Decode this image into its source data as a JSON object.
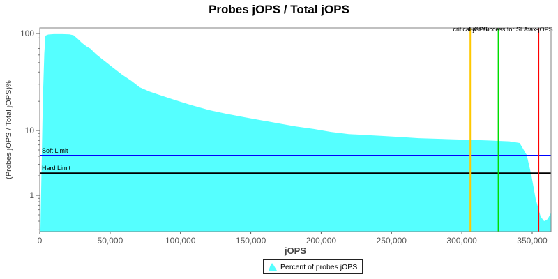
{
  "title": "Probes jOPS / Total jOPS",
  "axes": {
    "x_label": "jOPS",
    "y_label": "(Probes jOPS / Total jOPS)%"
  },
  "legend": {
    "label": "Percent of probes jOPS",
    "swatch_color": "#55FFFF"
  },
  "colors": {
    "area": "#55FFFF",
    "soft_limit": "#0000FF",
    "hard_limit": "#000000",
    "critical_jops": "#FFC800",
    "last_success_sla": "#00DD00",
    "max_jops": "#FF0000",
    "plot_border": "#808080"
  },
  "chart_data": {
    "type": "area",
    "title": "Probes jOPS / Total jOPS",
    "xlabel": "jOPS",
    "ylabel": "(Probes jOPS / Total jOPS)%",
    "x_scale": "linear",
    "y_scale": "log",
    "xlim": [
      0,
      363400
    ],
    "ylim": [
      0.28,
      115
    ],
    "grid": false,
    "legend_position": "bottom",
    "x_ticks": [
      {
        "value": 0,
        "label": "0"
      },
      {
        "value": 50000,
        "label": "50,000"
      },
      {
        "value": 100000,
        "label": "100,000"
      },
      {
        "value": 150000,
        "label": "150,000"
      },
      {
        "value": 200000,
        "label": "200,000"
      },
      {
        "value": 250000,
        "label": "250,000"
      },
      {
        "value": 300000,
        "label": "300,000"
      },
      {
        "value": 350000,
        "label": "350,000"
      }
    ],
    "y_ticks": [
      {
        "value": 100,
        "label": "100"
      },
      {
        "value": 10,
        "label": "10"
      },
      {
        "value": 1,
        "label": "1"
      }
    ],
    "series": [
      {
        "name": "Percent of probes jOPS",
        "color": "#55FFFF",
        "points": [
          [
            500,
            0.3
          ],
          [
            1200,
            2
          ],
          [
            2200,
            20
          ],
          [
            3200,
            62
          ],
          [
            4000,
            95
          ],
          [
            6000,
            97.5
          ],
          [
            10000,
            98.5
          ],
          [
            16000,
            98.5
          ],
          [
            21000,
            98
          ],
          [
            24000,
            96
          ],
          [
            27000,
            88
          ],
          [
            30000,
            80
          ],
          [
            33000,
            74
          ],
          [
            36200,
            69.5
          ],
          [
            40000,
            61
          ],
          [
            46100,
            52
          ],
          [
            52000,
            44.5
          ],
          [
            58500,
            37.6
          ],
          [
            65000,
            32.5
          ],
          [
            71000,
            27.9
          ],
          [
            78000,
            25.2
          ],
          [
            83300,
            23.7
          ],
          [
            95700,
            20.7
          ],
          [
            108000,
            18.2
          ],
          [
            120500,
            16.2
          ],
          [
            132000,
            14.9
          ],
          [
            145300,
            13.7
          ],
          [
            158000,
            12.7
          ],
          [
            170100,
            11.8
          ],
          [
            182000,
            11
          ],
          [
            194800,
            10.35
          ],
          [
            207000,
            9.5
          ],
          [
            219600,
            8.8
          ],
          [
            232000,
            8.5
          ],
          [
            244400,
            8.2
          ],
          [
            257000,
            7.9
          ],
          [
            269200,
            7.6
          ],
          [
            281000,
            7.45
          ],
          [
            294000,
            7.3
          ],
          [
            306400,
            7.15
          ],
          [
            318800,
            7
          ],
          [
            326200,
            6.9
          ],
          [
            333700,
            6.8
          ],
          [
            341100,
            6.4
          ],
          [
            346100,
            4.2
          ],
          [
            349500,
            2
          ],
          [
            352500,
            0.88
          ],
          [
            356000,
            0.47
          ],
          [
            358500,
            0.4
          ],
          [
            361000,
            0.43
          ],
          [
            363400,
            0.54
          ]
        ]
      }
    ],
    "markers": [
      {
        "label": "critical-jOPS",
        "value": 306000,
        "color": "#FFC800"
      },
      {
        "label": "Last success for SLA",
        "value": 326000,
        "color": "#00DD00"
      },
      {
        "label": "max-jOPS",
        "value": 354500,
        "color": "#FF0000"
      }
    ],
    "limits": [
      {
        "label": "Soft Limit",
        "value": 4.1,
        "color": "#0000FF"
      },
      {
        "label": "Hard Limit",
        "value": 2.2,
        "color": "#000000"
      }
    ]
  }
}
